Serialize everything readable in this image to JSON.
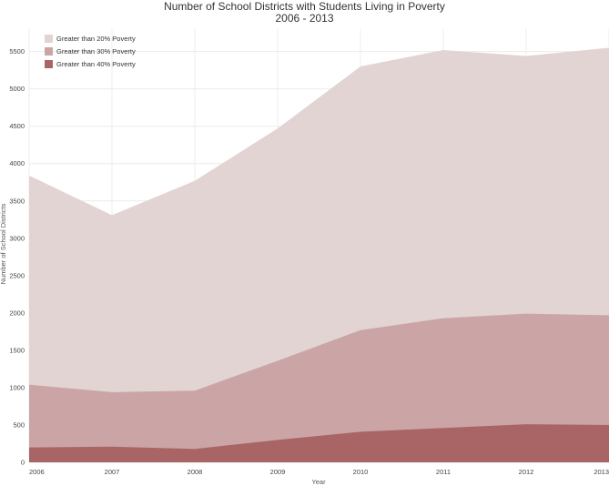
{
  "chart_data": {
    "type": "area",
    "title": "Number of School Districts with Students Living in Poverty",
    "subtitle": "2006 - 2013",
    "xlabel": "Year",
    "ylabel": "Number of School Districts",
    "x": [
      "2006",
      "2007",
      "2008",
      "2009",
      "2010",
      "2011",
      "2012",
      "2013"
    ],
    "ylim": [
      0,
      5800
    ],
    "yticks": [
      "0",
      "500",
      "1000",
      "1500",
      "2000",
      "2500",
      "3000",
      "3500",
      "4000",
      "4500",
      "5000",
      "5500"
    ],
    "ytick_values": [
      0,
      500,
      1000,
      1500,
      2000,
      2500,
      3000,
      3500,
      4000,
      4500,
      5000,
      5500
    ],
    "grid": true,
    "stacked": false,
    "legend_position": "top-left",
    "series": [
      {
        "name": "Greater than 20% Poverty",
        "color": "#e3d4d4",
        "values": [
          3840,
          3310,
          3770,
          4470,
          5300,
          5520,
          5440,
          5550
        ]
      },
      {
        "name": "Greater than 30% Poverty",
        "color": "#cba5a6",
        "values": [
          1040,
          940,
          960,
          1360,
          1770,
          1930,
          1990,
          1970
        ]
      },
      {
        "name": "Greater than 40% Poverty",
        "color": "#a96566",
        "values": [
          200,
          210,
          180,
          300,
          410,
          460,
          510,
          500
        ]
      }
    ]
  }
}
